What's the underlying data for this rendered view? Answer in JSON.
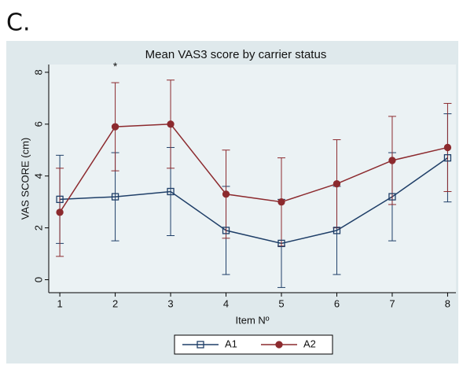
{
  "panel_label": "C.",
  "chart_data": {
    "type": "line",
    "title": "Mean VAS3 score by carrier status",
    "x_label": "Item Nº",
    "y_label": "VAS SCORE (cm)",
    "x": [
      1,
      2,
      3,
      4,
      5,
      6,
      7,
      8
    ],
    "series": [
      {
        "name": "A1",
        "color": "#1f3f68",
        "marker": "square",
        "values": [
          3.1,
          3.2,
          3.4,
          1.9,
          1.4,
          1.9,
          3.2,
          4.7
        ],
        "errors": [
          1.7,
          1.7,
          1.7,
          1.7,
          1.7,
          1.7,
          1.7,
          1.7
        ]
      },
      {
        "name": "A2",
        "color": "#8c2a2e",
        "marker": "circle",
        "values": [
          2.6,
          5.9,
          6.0,
          3.3,
          3.0,
          3.7,
          4.6,
          5.1
        ],
        "errors": [
          1.7,
          1.7,
          1.7,
          1.7,
          1.7,
          1.7,
          1.7,
          1.7
        ]
      }
    ],
    "annotations": [
      {
        "text": "*",
        "x": 2,
        "y": 8.2
      }
    ],
    "xlim": [
      0.8,
      8.15
    ],
    "ylim": [
      -0.5,
      8.3
    ],
    "xticks": [
      1,
      2,
      3,
      4,
      5,
      6,
      7,
      8
    ],
    "yticks": [
      0,
      2,
      4,
      6,
      8
    ],
    "legend": "bottom"
  }
}
